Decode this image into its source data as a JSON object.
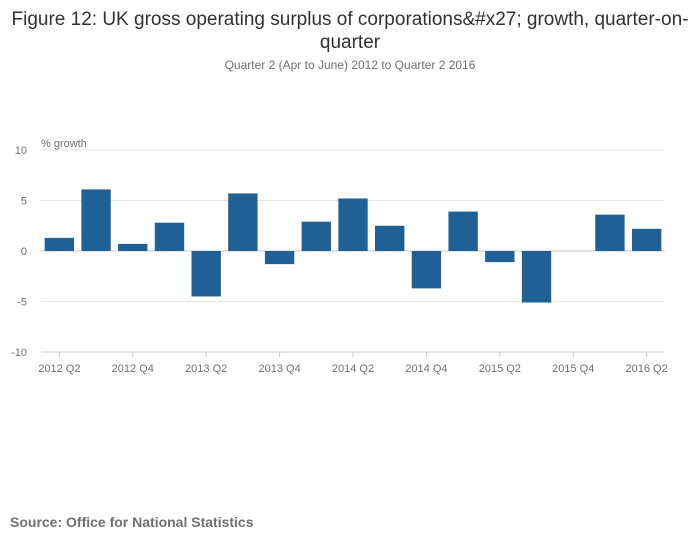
{
  "chart_data": {
    "type": "bar",
    "title": "Figure 12: UK gross operating surplus of corporations&#x27; growth, quarter-on-quarter",
    "subtitle": "Quarter 2 (Apr to June) 2012 to Quarter 2 2016",
    "ylabel": "% growth",
    "ylim": [
      -10,
      10
    ],
    "yticks": [
      10,
      5,
      0,
      -5,
      -10
    ],
    "categories": [
      "2012 Q2",
      "2012 Q3",
      "2012 Q4",
      "2013 Q1",
      "2013 Q2",
      "2013 Q3",
      "2013 Q4",
      "2014 Q1",
      "2014 Q2",
      "2014 Q3",
      "2014 Q4",
      "2015 Q1",
      "2015 Q2",
      "2015 Q3",
      "2015 Q4",
      "2016 Q1",
      "2016 Q2"
    ],
    "xtick_labels": [
      "2012 Q2",
      "2012 Q4",
      "2013 Q2",
      "2013 Q4",
      "2014 Q2",
      "2014 Q4",
      "2015 Q2",
      "2015 Q4",
      "2016 Q2"
    ],
    "values": [
      1.3,
      6.1,
      0.7,
      2.8,
      -4.5,
      5.7,
      -1.3,
      2.9,
      5.2,
      2.5,
      -3.7,
      3.9,
      -1.1,
      -5.1,
      0.0,
      3.6,
      2.2
    ],
    "bar_color": "#206095",
    "grid": true
  },
  "footer": {
    "source": "Source: Office for National Statistics"
  }
}
